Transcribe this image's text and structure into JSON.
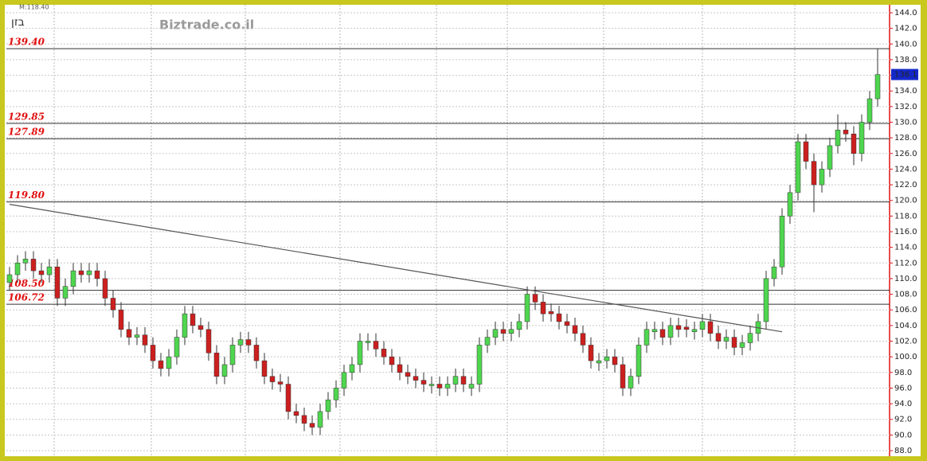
{
  "chart_data": {
    "type": "candlestick",
    "title": "בזן",
    "subtitle": "M:118.40",
    "watermark": "Biztrade.co.il",
    "ylim": [
      88,
      144
    ],
    "yticks": [
      {
        "value": 88,
        "label": "88.0"
      },
      {
        "value": 90,
        "label": "90.0"
      },
      {
        "value": 92,
        "label": "92.0"
      },
      {
        "value": 94,
        "label": "94.0"
      },
      {
        "value": 96,
        "label": "96.0"
      },
      {
        "value": 98,
        "label": "98.0"
      },
      {
        "value": 100,
        "label": "100.0"
      },
      {
        "value": 102,
        "label": "102.0"
      },
      {
        "value": 104,
        "label": "104.0"
      },
      {
        "value": 106,
        "label": "106.0"
      },
      {
        "value": 108,
        "label": "108.0"
      },
      {
        "value": 110,
        "label": "110.0"
      },
      {
        "value": 112,
        "label": "112.0"
      },
      {
        "value": 114,
        "label": "114.0"
      },
      {
        "value": 116,
        "label": "116.0"
      },
      {
        "value": 118,
        "label": "118.0"
      },
      {
        "value": 120,
        "label": "120.0"
      },
      {
        "value": 122,
        "label": "122.0"
      },
      {
        "value": 124,
        "label": "124.0"
      },
      {
        "value": 126,
        "label": "126.0"
      },
      {
        "value": 128,
        "label": "128.0"
      },
      {
        "value": 130,
        "label": "130.0"
      },
      {
        "value": 132,
        "label": "132.0"
      },
      {
        "value": 134,
        "label": "134.0"
      },
      {
        "value": 136,
        "label": "136.0"
      },
      {
        "value": 138,
        "label": "138.0"
      },
      {
        "value": 140,
        "label": "140.0"
      },
      {
        "value": 142,
        "label": "142.0"
      },
      {
        "value": 144,
        "label": "144.0"
      }
    ],
    "grid": true,
    "up_color": "#4fd64f",
    "down_color": "#cc1f1f",
    "level_color": "#333333",
    "level_label_color": "#e01010",
    "levels": [
      {
        "value": 139.4,
        "label": "139.40"
      },
      129.85,
      127.89,
      {
        "value": 119.8,
        "label": "119.80"
      },
      {
        "value": 108.5,
        "label": "108.50"
      },
      106.72
    ],
    "trendline": {
      "x": [
        0,
        97
      ],
      "y": [
        119.5,
        103.2
      ]
    },
    "last_price": 136.1,
    "open": [
      109.5,
      110.5,
      112,
      112.5,
      111,
      110.5,
      111.5,
      107.5,
      109,
      111,
      110.5,
      111,
      110,
      107.5,
      106,
      103.5,
      102.5,
      102.8,
      101.5,
      99.5,
      98.5,
      100,
      102.5,
      105.5,
      104,
      103.5,
      100.5,
      97.5,
      99,
      101.5,
      102.2,
      101.5,
      99.5,
      97.5,
      96.8,
      96.5,
      93,
      92.5,
      91.5,
      91,
      93,
      94.5,
      96,
      98,
      99,
      101.8,
      102,
      101,
      100,
      99,
      98,
      97.5,
      97,
      96.3,
      96.5,
      96,
      96.5,
      97.5,
      96,
      96.5,
      101.5,
      102.5,
      103.5,
      103,
      103.5,
      104.5,
      108,
      107,
      105.8,
      105.5,
      104.5,
      104,
      103,
      101.5,
      99.2,
      99.5,
      100,
      99,
      96,
      97.5,
      101.5,
      103.2,
      103.5,
      102.5,
      104,
      103.8,
      103.2,
      103.5,
      104.5,
      103,
      102,
      102.5,
      101.2,
      101.8,
      103,
      104.5,
      110,
      111.5,
      118,
      121,
      127.5,
      125,
      122,
      124,
      127,
      129,
      128.5,
      126,
      130,
      133
    ],
    "high": [
      111.5,
      113,
      113.5,
      113.5,
      112,
      112.5,
      112.5,
      110,
      112,
      112,
      112,
      112,
      111,
      108.5,
      107,
      104.5,
      103.8,
      103.8,
      102.5,
      100.5,
      101,
      103.5,
      106.5,
      106.5,
      105,
      104.5,
      101.5,
      100,
      102.5,
      103.2,
      103.2,
      102.5,
      100.5,
      98.5,
      97.8,
      97.5,
      94,
      93.5,
      92.5,
      94,
      95.5,
      97,
      99,
      100,
      103,
      103,
      103,
      102,
      101,
      100,
      99,
      98.5,
      98,
      97.5,
      97.5,
      97.5,
      98.5,
      98.5,
      97.5,
      102.5,
      103.5,
      104.5,
      104.5,
      104.5,
      105.5,
      109,
      109,
      108,
      106.8,
      106.5,
      105.5,
      105,
      104,
      102.5,
      100.5,
      101,
      101,
      100,
      98.5,
      102.5,
      104.5,
      104.5,
      104.5,
      105,
      105,
      104.8,
      104.5,
      105.5,
      105.5,
      104,
      103.5,
      103.5,
      102.8,
      104,
      105.5,
      111,
      112.5,
      119,
      122,
      128.5,
      128.5,
      126,
      125,
      128,
      131,
      130,
      129.5,
      131,
      134,
      139.4
    ],
    "low": [
      108.5,
      109.5,
      111,
      110,
      109.5,
      109.5,
      106.5,
      106.5,
      108,
      109.5,
      109.5,
      109,
      106.5,
      105,
      102.5,
      101.5,
      101.5,
      100.5,
      98.5,
      97.5,
      97.5,
      99,
      101.5,
      103,
      102.5,
      99.5,
      96.5,
      96.5,
      98,
      100.5,
      100.5,
      98.5,
      96.5,
      95.8,
      95.5,
      92,
      91.5,
      90.5,
      90,
      90,
      92,
      93.5,
      95,
      97,
      98,
      100.8,
      100,
      99,
      98,
      97,
      96.5,
      96,
      95.5,
      95.3,
      95,
      95,
      95.5,
      95.5,
      95,
      95.5,
      100.5,
      101.5,
      102,
      102,
      102.5,
      103.5,
      106,
      104.5,
      104.5,
      103.5,
      103,
      102,
      100.5,
      98.5,
      98.2,
      98.5,
      98,
      95,
      95,
      96.5,
      100.5,
      102.2,
      101.5,
      101.5,
      102.5,
      102.5,
      102.2,
      102.5,
      102,
      101,
      101,
      100.2,
      100.2,
      100.8,
      102,
      103.5,
      109,
      110.5,
      117,
      120,
      124,
      118.5,
      121,
      123,
      126,
      127.5,
      124.5,
      125,
      129,
      132
    ],
    "close": [
      110.5,
      112,
      112.5,
      111,
      110.5,
      111.5,
      107.5,
      109,
      111,
      110.5,
      111,
      110,
      107.5,
      106,
      103.5,
      102.5,
      102.8,
      101.5,
      99.5,
      98.5,
      100,
      102.5,
      105.5,
      104,
      103.5,
      100.5,
      97.5,
      99,
      101.5,
      102.2,
      101.5,
      99.5,
      97.5,
      96.8,
      96.5,
      93,
      92.5,
      91.5,
      91,
      93,
      94.5,
      96,
      98,
      99,
      102,
      102,
      101,
      100,
      99,
      98,
      97.5,
      97,
      96.5,
      96.5,
      96,
      96.5,
      97.5,
      96.5,
      96.5,
      101.5,
      102.5,
      103.5,
      103,
      103.5,
      104.5,
      108,
      107,
      105.5,
      105.5,
      104.5,
      104,
      103,
      101.5,
      99.5,
      99.5,
      100,
      99,
      96,
      97.5,
      101.5,
      103.5,
      103.5,
      102.5,
      104,
      103.5,
      103.5,
      103.5,
      104.5,
      103,
      102,
      102.5,
      101.2,
      101.8,
      103,
      104.5,
      110,
      111.5,
      118,
      121,
      127.5,
      125,
      122,
      124,
      127,
      129,
      128.5,
      126,
      130,
      133,
      136.1
    ]
  }
}
